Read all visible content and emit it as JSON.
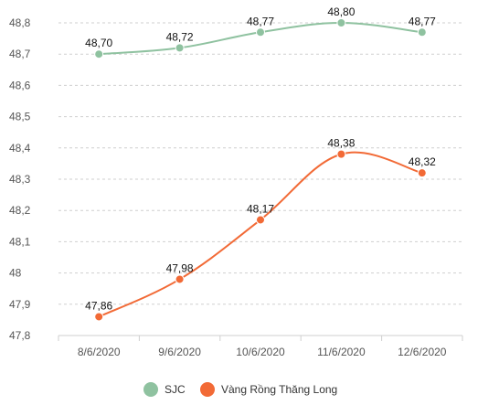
{
  "chart_data": {
    "type": "line",
    "categories": [
      "8/6/2020",
      "9/6/2020",
      "10/6/2020",
      "11/6/2020",
      "12/6/2020"
    ],
    "ylim": [
      47.8,
      48.8
    ],
    "y_ticks": [
      "47,8",
      "47,9",
      "48",
      "48,1",
      "48,2",
      "48,3",
      "48,4",
      "48,5",
      "48,6",
      "48,7",
      "48,8"
    ],
    "grid": "horizontal-dashed",
    "legend_position": "bottom-center",
    "series": [
      {
        "name": "SJC",
        "color": "#8fc2a0",
        "values": [
          48.7,
          48.72,
          48.77,
          48.8,
          48.77
        ],
        "labels": [
          "48,70",
          "48,72",
          "48,77",
          "48,80",
          "48,77"
        ]
      },
      {
        "name": "Vàng Rồng Thăng Long",
        "color": "#f26a36",
        "values": [
          47.86,
          47.98,
          48.17,
          48.38,
          48.32
        ],
        "labels": [
          "47,86",
          "47,98",
          "48,17",
          "48,38",
          "48,32"
        ]
      }
    ]
  }
}
